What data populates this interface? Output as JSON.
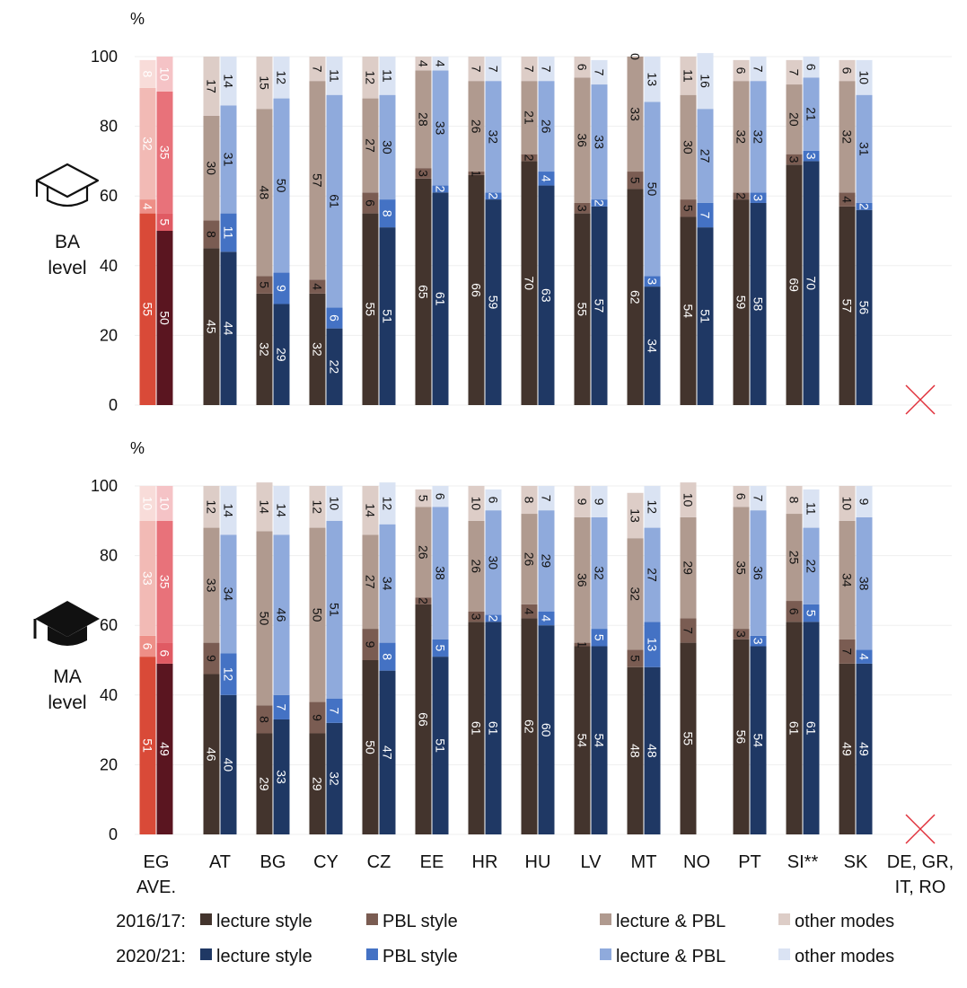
{
  "chart_data": {
    "type": "bar",
    "stacked": true,
    "ylim": [
      0,
      100
    ],
    "yticks": [
      0,
      20,
      40,
      60,
      80,
      100
    ],
    "ylabel": "%",
    "categories": [
      "EG AVE.",
      "AT",
      "BG",
      "CY",
      "CZ",
      "EE",
      "HR",
      "HU",
      "LV",
      "MT",
      "NO",
      "PT",
      "SI**",
      "SK",
      "DE, GR, IT, RO"
    ],
    "category_labels": [
      [
        "EG",
        "AVE."
      ],
      [
        "AT"
      ],
      [
        "BG"
      ],
      [
        "CY"
      ],
      [
        "CZ"
      ],
      [
        "EE"
      ],
      [
        "HR"
      ],
      [
        "HU"
      ],
      [
        "LV"
      ],
      [
        "MT"
      ],
      [
        "NO"
      ],
      [
        "PT"
      ],
      [
        "SI**"
      ],
      [
        "SK"
      ],
      [
        "DE, GR,",
        "IT, RO"
      ]
    ],
    "components": [
      "lecture style",
      "PBL style",
      "lecture & PBL",
      "other modes"
    ],
    "colors": {
      "2016/17": [
        "#43342d",
        "#7a5c52",
        "#b09a8f",
        "#ddcdc7"
      ],
      "2020/21": [
        "#1f3864",
        "#4472c4",
        "#8faadc",
        "#dae3f3"
      ],
      "avg_2016/17": [
        "#d94a38",
        "#ee8f87",
        "#f2bab5",
        "#f8dcd9"
      ],
      "avg_2020/21": [
        "#5a1520",
        "#e05a63",
        "#e8727a",
        "#f5c3c6"
      ]
    },
    "missing_marker": "x",
    "panels": [
      {
        "icon": "graduation-cap-outline-icon",
        "level_label": [
          "BA",
          "level"
        ],
        "series": [
          {
            "name": "2016/17",
            "values": [
              [
                55,
                4,
                32,
                8
              ],
              [
                45,
                8,
                30,
                17
              ],
              [
                32,
                5,
                48,
                15
              ],
              [
                32,
                4,
                57,
                7
              ],
              [
                55,
                6,
                27,
                12
              ],
              [
                65,
                3,
                28,
                4
              ],
              [
                66,
                1,
                26,
                7
              ],
              [
                70,
                2,
                21,
                7
              ],
              [
                55,
                3,
                36,
                6
              ],
              [
                62,
                5,
                33,
                0
              ],
              [
                54,
                5,
                30,
                11
              ],
              [
                59,
                2,
                32,
                6
              ],
              [
                69,
                3,
                20,
                7
              ],
              [
                57,
                4,
                32,
                6
              ],
              null
            ]
          },
          {
            "name": "2020/21",
            "values": [
              [
                50,
                5,
                35,
                10
              ],
              [
                44,
                11,
                31,
                14
              ],
              [
                29,
                9,
                50,
                12
              ],
              [
                22,
                6,
                61,
                11
              ],
              [
                51,
                8,
                30,
                11
              ],
              [
                61,
                2,
                33,
                4
              ],
              [
                59,
                2,
                32,
                7
              ],
              [
                63,
                4,
                26,
                7
              ],
              [
                57,
                2,
                33,
                7
              ],
              [
                34,
                3,
                50,
                13
              ],
              [
                51,
                7,
                27,
                16
              ],
              [
                58,
                3,
                32,
                7
              ],
              [
                70,
                3,
                21,
                6
              ],
              [
                56,
                2,
                31,
                10
              ],
              null
            ]
          }
        ]
      },
      {
        "icon": "graduation-cap-filled-icon",
        "level_label": [
          "MA",
          "level"
        ],
        "series": [
          {
            "name": "2016/17",
            "values": [
              [
                51,
                6,
                33,
                10
              ],
              [
                46,
                9,
                33,
                12
              ],
              [
                29,
                8,
                50,
                14
              ],
              [
                29,
                9,
                50,
                12
              ],
              [
                50,
                9,
                27,
                14
              ],
              [
                66,
                2,
                26,
                5
              ],
              [
                61,
                3,
                26,
                10
              ],
              [
                62,
                4,
                26,
                8
              ],
              [
                54,
                1,
                36,
                9
              ],
              [
                48,
                5,
                32,
                13
              ],
              [
                55,
                7,
                29,
                10
              ],
              [
                56,
                3,
                35,
                6
              ],
              [
                61,
                6,
                25,
                8
              ],
              [
                49,
                7,
                34,
                10
              ],
              null
            ]
          },
          {
            "name": "2020/21",
            "values": [
              [
                49,
                6,
                35,
                10
              ],
              [
                40,
                12,
                34,
                14
              ],
              [
                33,
                7,
                46,
                14
              ],
              [
                32,
                7,
                51,
                10
              ],
              [
                47,
                8,
                34,
                12
              ],
              [
                51,
                5,
                38,
                6
              ],
              [
                61,
                2,
                30,
                6
              ],
              [
                60,
                4,
                29,
                7
              ],
              [
                54,
                5,
                32,
                9
              ],
              [
                48,
                13,
                27,
                12
              ],
              null,
              [
                54,
                3,
                36,
                7
              ],
              [
                61,
                5,
                22,
                11
              ],
              [
                49,
                4,
                38,
                9
              ],
              null
            ]
          }
        ]
      }
    ],
    "legend": [
      {
        "period": "2016/17:",
        "items": [
          "lecture style",
          "PBL style",
          "lecture & PBL",
          "other modes"
        ]
      },
      {
        "period": "2020/21:",
        "items": [
          "lecture style",
          "PBL style",
          "lecture & PBL",
          "other modes"
        ]
      }
    ]
  }
}
